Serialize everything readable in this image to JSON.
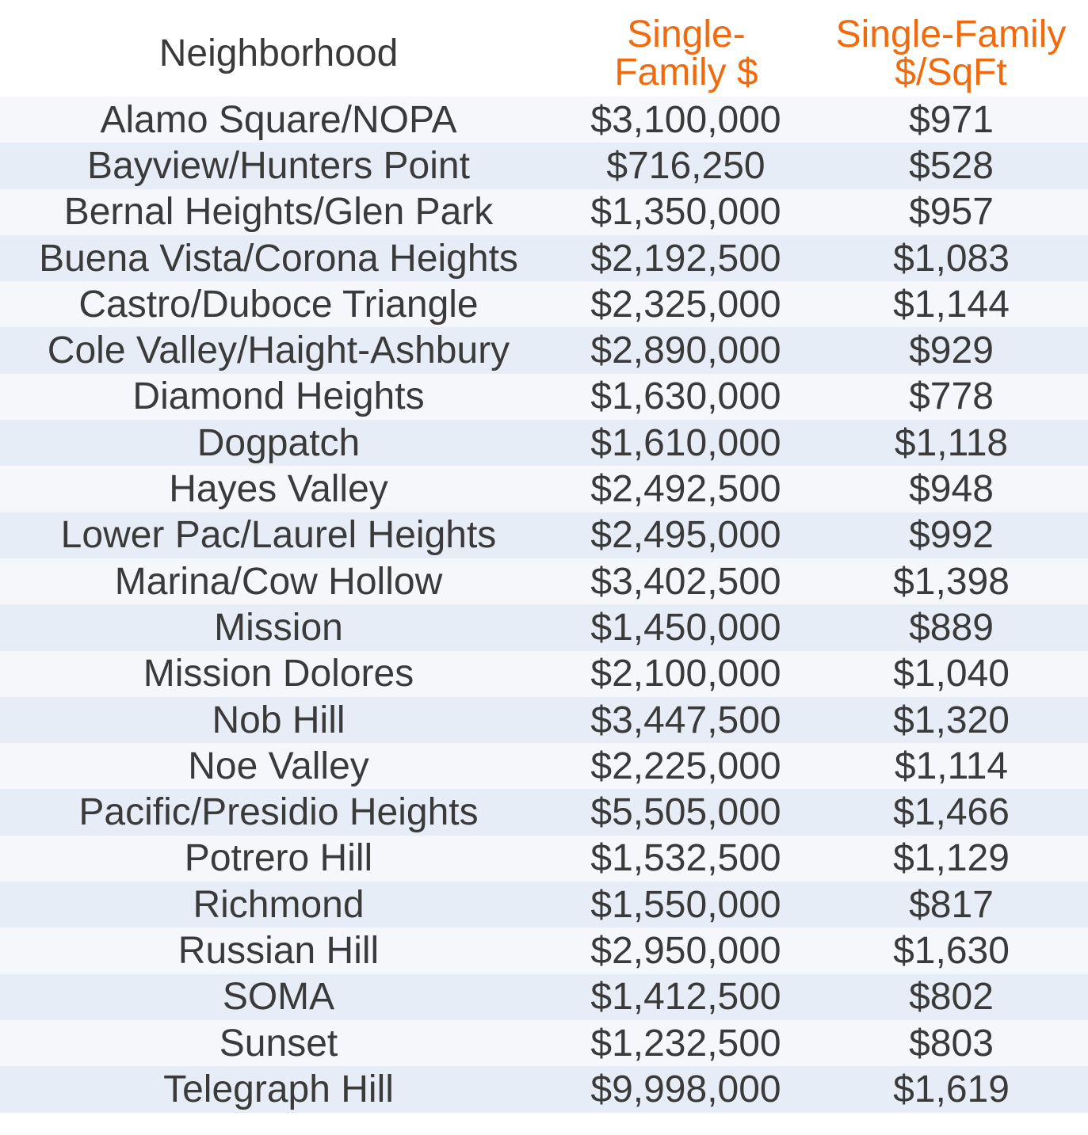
{
  "header": {
    "neighborhood": "Neighborhood",
    "price_line1": "Single-",
    "price_line2": "Family $",
    "sqft_line1": "Single-Family",
    "sqft_line2": "$/SqFt"
  },
  "colors": {
    "header_accent": "#f06a0e",
    "text": "#3a3a3a",
    "row_light": "#f5f7fb",
    "row_blue": "#e6edf7"
  },
  "rows": [
    {
      "name": "Alamo Square/NOPA",
      "price": "$3,100,000",
      "sqft": "$971"
    },
    {
      "name": "Bayview/Hunters Point",
      "price": "$716,250",
      "sqft": "$528"
    },
    {
      "name": "Bernal Heights/Glen Park",
      "price": "$1,350,000",
      "sqft": "$957"
    },
    {
      "name": "Buena Vista/Corona Heights",
      "price": "$2,192,500",
      "sqft": "$1,083"
    },
    {
      "name": "Castro/Duboce Triangle",
      "price": "$2,325,000",
      "sqft": "$1,144"
    },
    {
      "name": "Cole Valley/Haight-Ashbury",
      "price": "$2,890,000",
      "sqft": "$929"
    },
    {
      "name": "Diamond Heights",
      "price": "$1,630,000",
      "sqft": "$778"
    },
    {
      "name": "Dogpatch",
      "price": "$1,610,000",
      "sqft": "$1,118"
    },
    {
      "name": "Hayes Valley",
      "price": "$2,492,500",
      "sqft": "$948"
    },
    {
      "name": "Lower Pac/Laurel Heights",
      "price": "$2,495,000",
      "sqft": "$992"
    },
    {
      "name": "Marina/Cow Hollow",
      "price": "$3,402,500",
      "sqft": "$1,398"
    },
    {
      "name": "Mission",
      "price": "$1,450,000",
      "sqft": "$889"
    },
    {
      "name": "Mission Dolores",
      "price": "$2,100,000",
      "sqft": "$1,040"
    },
    {
      "name": "Nob Hill",
      "price": "$3,447,500",
      "sqft": "$1,320"
    },
    {
      "name": "Noe Valley",
      "price": "$2,225,000",
      "sqft": "$1,114"
    },
    {
      "name": "Pacific/Presidio Heights",
      "price": "$5,505,000",
      "sqft": "$1,466"
    },
    {
      "name": "Potrero Hill",
      "price": "$1,532,500",
      "sqft": "$1,129"
    },
    {
      "name": "Richmond",
      "price": "$1,550,000",
      "sqft": "$817"
    },
    {
      "name": "Russian Hill",
      "price": "$2,950,000",
      "sqft": "$1,630"
    },
    {
      "name": "SOMA",
      "price": "$1,412,500",
      "sqft": "$802"
    },
    {
      "name": "Sunset",
      "price": "$1,232,500",
      "sqft": "$803"
    },
    {
      "name": "Telegraph Hill",
      "price": "$9,998,000",
      "sqft": "$1,619"
    }
  ]
}
